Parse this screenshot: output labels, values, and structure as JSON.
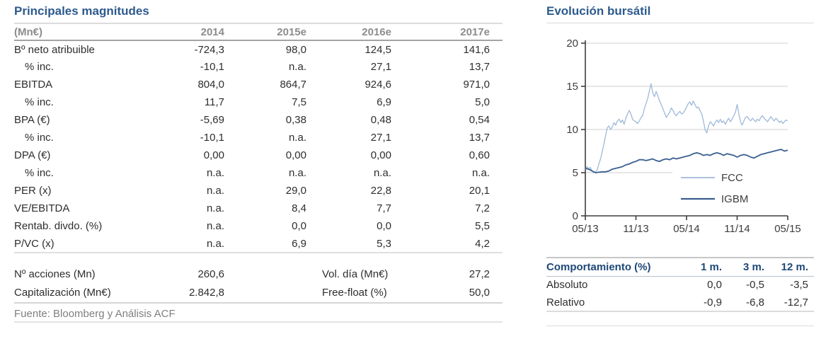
{
  "colors": {
    "title_navy": "#2d5a8e",
    "perf_header_navy": "#1e4878",
    "header_gray": "#8c8c8c",
    "source_gray": "#7f7f7f",
    "grid_gray": "#cfcfcf",
    "axis_dark": "#3d3d3d",
    "fcc_line": "#9fb9da",
    "igbm_line": "#3a5f8f"
  },
  "left": {
    "title": "Principales magnitudes",
    "table": {
      "unit_header": "(Mn€)",
      "year_headers": [
        "2014",
        "2015e",
        "2016e",
        "2017e"
      ],
      "rows": [
        {
          "label": "Bº neto atribuible",
          "indent": false,
          "values": [
            "-724,3",
            "98,0",
            "124,5",
            "141,6"
          ]
        },
        {
          "label": "% inc.",
          "indent": true,
          "values": [
            "-10,1",
            "n.a.",
            "27,1",
            "13,7"
          ]
        },
        {
          "label": "EBITDA",
          "indent": false,
          "values": [
            "804,0",
            "864,7",
            "924,6",
            "971,0"
          ]
        },
        {
          "label": "% inc.",
          "indent": true,
          "values": [
            "11,7",
            "7,5",
            "6,9",
            "5,0"
          ]
        },
        {
          "label": "BPA (€)",
          "indent": false,
          "values": [
            "-5,69",
            "0,38",
            "0,48",
            "0,54"
          ]
        },
        {
          "label": "% inc.",
          "indent": true,
          "values": [
            "-10,1",
            "n.a.",
            "27,1",
            "13,7"
          ]
        },
        {
          "label": "DPA (€)",
          "indent": false,
          "values": [
            "0,00",
            "0,00",
            "0,00",
            "0,60"
          ]
        },
        {
          "label": "% inc.",
          "indent": true,
          "values": [
            "n.a.",
            "n.a.",
            "n.a.",
            "n.a."
          ]
        },
        {
          "label": "PER (x)",
          "indent": false,
          "values": [
            "n.a.",
            "29,0",
            "22,8",
            "20,1"
          ]
        },
        {
          "label": "VE/EBITDA",
          "indent": false,
          "values": [
            "n.a.",
            "8,4",
            "7,7",
            "7,2"
          ]
        },
        {
          "label": "Rentab. divdo. (%)",
          "indent": false,
          "values": [
            "n.a.",
            "0,0",
            "0,0",
            "5,5"
          ]
        },
        {
          "label": "P/VC (x)",
          "indent": false,
          "values": [
            "n.a.",
            "6,9",
            "5,3",
            "4,2"
          ]
        }
      ]
    },
    "stats": [
      {
        "label": "Nº acciones (Mn)",
        "value": "260,6",
        "label2": "Vol. día (Mn€)",
        "value2": "27,2"
      },
      {
        "label": "Capitalización (Mn€)",
        "value": "2.842,8",
        "label2": "Free-float (%)",
        "value2": "50,0"
      }
    ],
    "source": "Fuente: Bloomberg y Análisis ACF"
  },
  "right": {
    "title": "Evolución bursátil",
    "performance": {
      "header": "Comportamiento (%)",
      "period_headers": [
        "1 m.",
        "3 m.",
        "12 m."
      ],
      "rows": [
        {
          "label": "Absoluto",
          "values": [
            "0,0",
            "-0,5",
            "-3,5"
          ]
        },
        {
          "label": "Relativo",
          "values": [
            "-0,9",
            "-6,8",
            "-12,7"
          ]
        }
      ]
    }
  },
  "chart_data": {
    "type": "line",
    "title": "Evolución bursátil",
    "xlabel": "",
    "ylabel": "",
    "ylim": [
      0,
      20
    ],
    "y_ticks": [
      0,
      5,
      10,
      15,
      20
    ],
    "x_range_months": [
      0,
      24
    ],
    "x_tick_labels": [
      "05/13",
      "11/13",
      "05/14",
      "11/14",
      "05/15"
    ],
    "x_tick_positions": [
      0,
      6,
      12,
      18,
      24
    ],
    "grid": true,
    "legend_position": "inside-lower-right",
    "series": [
      {
        "name": "FCC",
        "color": "#9fb9da",
        "width": 1.3,
        "x_start": 0,
        "x_step": 0.2,
        "values": [
          5.4,
          5.7,
          5.5,
          5.6,
          5.2,
          5.0,
          5.1,
          5.3,
          6.0,
          6.6,
          7.4,
          8.3,
          9.3,
          10.2,
          10.4,
          10.0,
          10.3,
          10.8,
          10.5,
          11.0,
          11.2,
          10.8,
          11.1,
          10.6,
          11.3,
          11.8,
          12.2,
          11.8,
          11.2,
          11.0,
          10.9,
          10.7,
          11.0,
          11.4,
          11.6,
          12.4,
          13.0,
          13.6,
          14.5,
          15.3,
          14.2,
          13.8,
          14.4,
          13.9,
          13.3,
          12.9,
          12.4,
          11.9,
          11.4,
          11.7,
          12.0,
          12.5,
          12.2,
          11.8,
          11.6,
          11.9,
          12.1,
          11.8,
          11.9,
          12.2,
          12.6,
          13.0,
          13.2,
          12.8,
          13.3,
          12.9,
          12.5,
          12.6,
          12.2,
          11.8,
          11.0,
          10.0,
          9.6,
          10.4,
          10.9,
          10.7,
          10.4,
          10.8,
          11.1,
          10.8,
          11.2,
          10.8,
          11.0,
          10.6,
          11.0,
          11.3,
          10.9,
          11.2,
          11.6,
          12.0,
          12.9,
          11.8,
          10.9,
          10.5,
          11.0,
          11.4,
          11.5,
          11.2,
          11.0,
          11.3,
          11.1,
          10.9,
          11.2,
          11.0,
          11.4,
          11.6,
          11.3,
          11.1,
          10.9,
          11.2,
          11.5,
          11.2,
          11.0,
          11.3,
          11.1,
          10.8,
          11.0,
          10.7,
          10.9,
          11.1,
          11.0
        ]
      },
      {
        "name": "IGBM",
        "color": "#3a5f8f",
        "width": 1.8,
        "x_start": 0,
        "x_step": 0.4,
        "values": [
          5.5,
          5.4,
          5.2,
          5.0,
          5.05,
          5.1,
          5.1,
          5.2,
          5.4,
          5.5,
          5.6,
          5.7,
          5.9,
          6.0,
          6.2,
          6.3,
          6.5,
          6.5,
          6.4,
          6.5,
          6.6,
          6.4,
          6.3,
          6.5,
          6.6,
          6.5,
          6.7,
          6.6,
          6.7,
          6.8,
          6.9,
          7.0,
          7.2,
          7.3,
          7.2,
          7.0,
          7.1,
          7.0,
          7.2,
          7.3,
          7.2,
          7.0,
          7.2,
          7.1,
          7.0,
          6.8,
          7.0,
          7.1,
          7.0,
          6.8,
          6.7,
          6.9,
          7.1,
          7.2,
          7.3,
          7.4,
          7.5,
          7.6,
          7.7,
          7.5,
          7.6
        ]
      }
    ]
  }
}
